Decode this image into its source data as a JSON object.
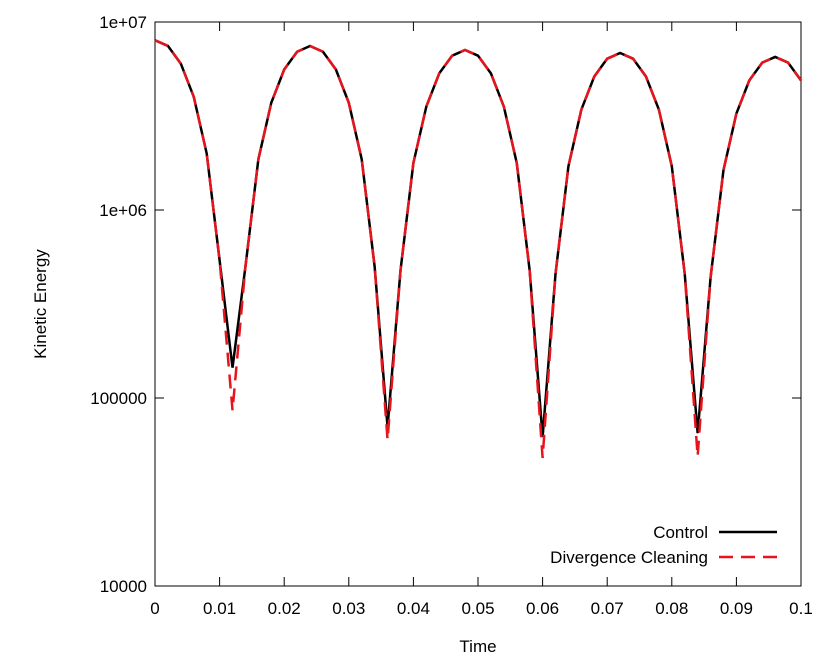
{
  "chart_data": {
    "type": "line",
    "x_label": "Time",
    "y_label": "Kinetic Energy",
    "y_log": true,
    "legend": "lower right",
    "xlim": [
      0,
      0.1
    ],
    "xticks": [
      0,
      0.01,
      0.02,
      0.03,
      0.04,
      0.05,
      0.06,
      0.07,
      0.08,
      0.09,
      0.1
    ],
    "ylim": [
      10000,
      10000000
    ],
    "yticks": [
      10000,
      100000,
      {
        "value": 1000000,
        "label": "1e+06"
      },
      {
        "value": 10000000,
        "label": "1e+07"
      }
    ],
    "x": [
      0,
      0.002,
      0.004,
      0.006,
      0.008,
      0.01,
      0.012,
      0.014,
      0.016,
      0.018,
      0.02,
      0.022,
      0.024,
      0.026,
      0.028,
      0.03,
      0.032,
      0.034,
      0.036,
      0.038,
      0.04,
      0.042,
      0.044,
      0.046,
      0.048,
      0.05,
      0.052,
      0.054,
      0.056,
      0.058,
      0.06,
      0.062,
      0.064,
      0.066,
      0.068,
      0.07,
      0.072,
      0.074,
      0.076,
      0.078,
      0.08,
      0.082,
      0.084,
      0.086,
      0.088,
      0.09,
      0.092,
      0.094,
      0.096,
      0.098,
      0.1
    ],
    "series": [
      {
        "name": "Control",
        "color": "#000000",
        "style": "solid",
        "values": [
          8000000,
          7460000,
          6000000,
          4000000,
          2000000,
          540000,
          145000,
          500000,
          1860000,
          3720000,
          5590000,
          6950000,
          7450000,
          6950000,
          5590000,
          3720000,
          1860000,
          500000,
          70000,
          476000,
          1780000,
          3550000,
          5330000,
          6620000,
          7100000,
          6620000,
          5330000,
          3550000,
          1780000,
          476000,
          62000,
          458000,
          1710000,
          3420000,
          5130000,
          6380000,
          6840000,
          6380000,
          5130000,
          3420000,
          1710000,
          458000,
          65000,
          437000,
          1630000,
          3260000,
          4890000,
          6080000,
          6520000,
          6080000,
          4890000
        ]
      },
      {
        "name": "Divergence Cleaning",
        "color": "#e8141c",
        "style": "dashed",
        "values": [
          8000000,
          7460000,
          6000000,
          4000000,
          2000000,
          540000,
          86000,
          500000,
          1860000,
          3720000,
          5590000,
          6950000,
          7450000,
          6950000,
          5590000,
          3720000,
          1860000,
          500000,
          60000,
          476000,
          1780000,
          3550000,
          5330000,
          6620000,
          7100000,
          6620000,
          5330000,
          3550000,
          1780000,
          476000,
          48000,
          458000,
          1710000,
          3420000,
          5130000,
          6380000,
          6840000,
          6380000,
          5130000,
          3420000,
          1710000,
          458000,
          49000,
          437000,
          1630000,
          3260000,
          4890000,
          6080000,
          6520000,
          6080000,
          4890000
        ]
      }
    ]
  }
}
